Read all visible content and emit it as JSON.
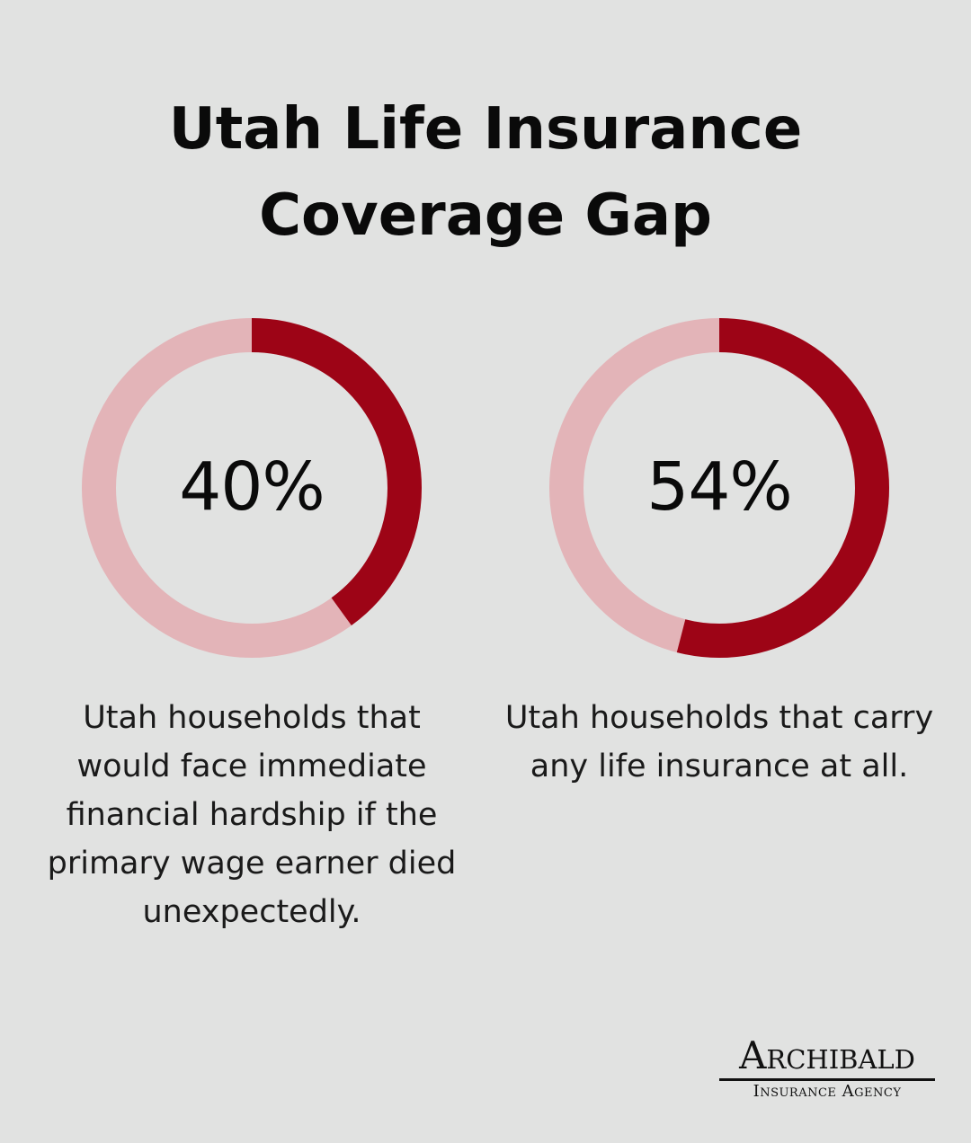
{
  "title_line1": "Utah Life Insurance",
  "title_line2": "Coverage Gap",
  "colors": {
    "background": "#e1e2e1",
    "ring_filled": "#9d0416",
    "ring_track": "#e3b4b8"
  },
  "chart_data": [
    {
      "type": "pie",
      "value_label": "40%",
      "value": 40,
      "max": 100,
      "caption": "Utah households that would face immediate financial hardship if the primary wage earner died unexpectedly."
    },
    {
      "type": "pie",
      "value_label": "54%",
      "value": 54,
      "max": 100,
      "caption": "Utah households that carry any life insurance at all."
    }
  ],
  "logo": {
    "name": "Archibald",
    "subtitle": "Insurance Agency"
  }
}
